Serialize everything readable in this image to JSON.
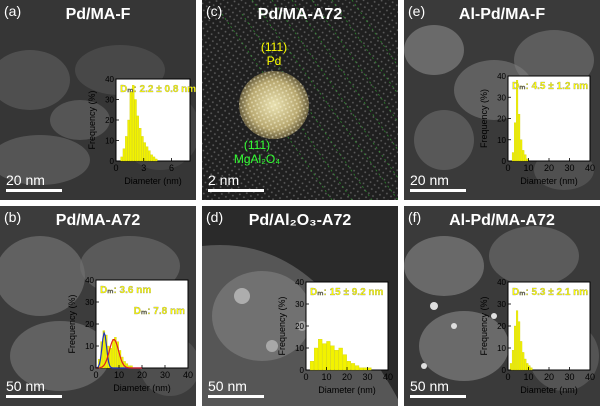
{
  "panels": [
    {
      "label": "(a)",
      "title": "Pd/MA-F",
      "scale": "20 nm",
      "histogram": {
        "dm_label": "Dₘ: 2.2 ± 0.8 nm",
        "ylabel": "Frequency (%)",
        "xlabel": "Diameter (nm)",
        "x_ticks": [
          "0",
          "3",
          "6"
        ],
        "x_range": [
          0,
          8
        ],
        "y_ticks": [
          "0",
          "10",
          "20",
          "30",
          "40"
        ],
        "y_range": [
          0,
          40
        ],
        "bins_start": 0.5,
        "bin_width": 0.25,
        "values": [
          2,
          6,
          12,
          20,
          34,
          37,
          30,
          22,
          16,
          12,
          9,
          7,
          5,
          3,
          2,
          1
        ]
      }
    },
    {
      "label": "(b)",
      "title": "Pd/MA-A72",
      "scale": "50 nm",
      "histogram": {
        "dm_label": "Dₘ: 3.6 nm",
        "dm_label_2": "Dₘ: 7.8 nm",
        "ylabel": "Frequency (%)",
        "xlabel": "Diameter (nm)",
        "x_ticks": [
          "0",
          "10",
          "20",
          "30",
          "40"
        ],
        "x_range": [
          0,
          40
        ],
        "y_ticks": [
          "0",
          "10",
          "20",
          "30",
          "40"
        ],
        "y_range": [
          0,
          40
        ],
        "bins_start": 1,
        "bin_width": 1,
        "values": [
          4,
          12,
          17,
          15,
          10,
          9,
          13,
          14,
          12,
          8,
          5,
          3,
          2,
          1,
          1
        ]
      }
    },
    {
      "label": "(c)",
      "title": "Pd/MA-A72",
      "scale": "2 nm",
      "annotation_pd_plane": "(111)",
      "annotation_pd": "Pd",
      "annotation_support_plane": "(111)",
      "annotation_support": "MgAl₂O₄"
    },
    {
      "label": "(d)",
      "title": "Pd/Al₂O₃-A72",
      "scale": "50 nm",
      "histogram": {
        "dm_label": "Dₘ: 15 ± 9.2 nm",
        "ylabel": "Frequency (%)",
        "xlabel": "Diameter (nm)",
        "x_ticks": [
          "0",
          "10",
          "20",
          "30",
          "40"
        ],
        "x_range": [
          0,
          40
        ],
        "y_ticks": [
          "0",
          "10",
          "20",
          "30",
          "40"
        ],
        "y_range": [
          0,
          40
        ],
        "bins_start": 2,
        "bin_width": 2,
        "values": [
          4,
          10,
          14,
          12,
          13,
          11,
          9,
          10,
          7,
          4,
          3,
          2,
          1,
          1,
          1
        ]
      }
    },
    {
      "label": "(e)",
      "title": "Al-Pd/MA-F",
      "scale": "20 nm",
      "histogram": {
        "dm_label": "Dₘ: 4.5 ± 1.2 nm",
        "ylabel": "Frequency (%)",
        "xlabel": "Diameter (nm)",
        "x_ticks": [
          "0",
          "10",
          "20",
          "30",
          "40"
        ],
        "x_range": [
          0,
          40
        ],
        "y_ticks": [
          "0",
          "10",
          "20",
          "30",
          "40"
        ],
        "y_range": [
          0,
          40
        ],
        "bins_start": 2,
        "bin_width": 1,
        "values": [
          4,
          18,
          38,
          22,
          10,
          5,
          3,
          1
        ]
      }
    },
    {
      "label": "(f)",
      "title": "Al-Pd/MA-A72",
      "scale": "50 nm",
      "histogram": {
        "dm_label": "Dₘ: 5.3 ± 2.1 nm",
        "ylabel": "Frequency (%)",
        "xlabel": "Diameter (nm)",
        "x_ticks": [
          "0",
          "10",
          "20",
          "30",
          "40"
        ],
        "x_range": [
          0,
          40
        ],
        "y_ticks": [
          "0",
          "10",
          "20",
          "30",
          "40"
        ],
        "y_range": [
          0,
          40
        ],
        "bins_start": 1,
        "bin_width": 1,
        "values": [
          3,
          9,
          20,
          27,
          22,
          13,
          8,
          5,
          3,
          2,
          1
        ]
      }
    }
  ],
  "colors": {
    "label_yellow": "#ffff00",
    "bar_yellow": "#f2f200",
    "annot_green": "#33ff33",
    "fit_red": "#e02020",
    "fit_blue": "#2030c0",
    "inset_bg": "#ffffff"
  }
}
